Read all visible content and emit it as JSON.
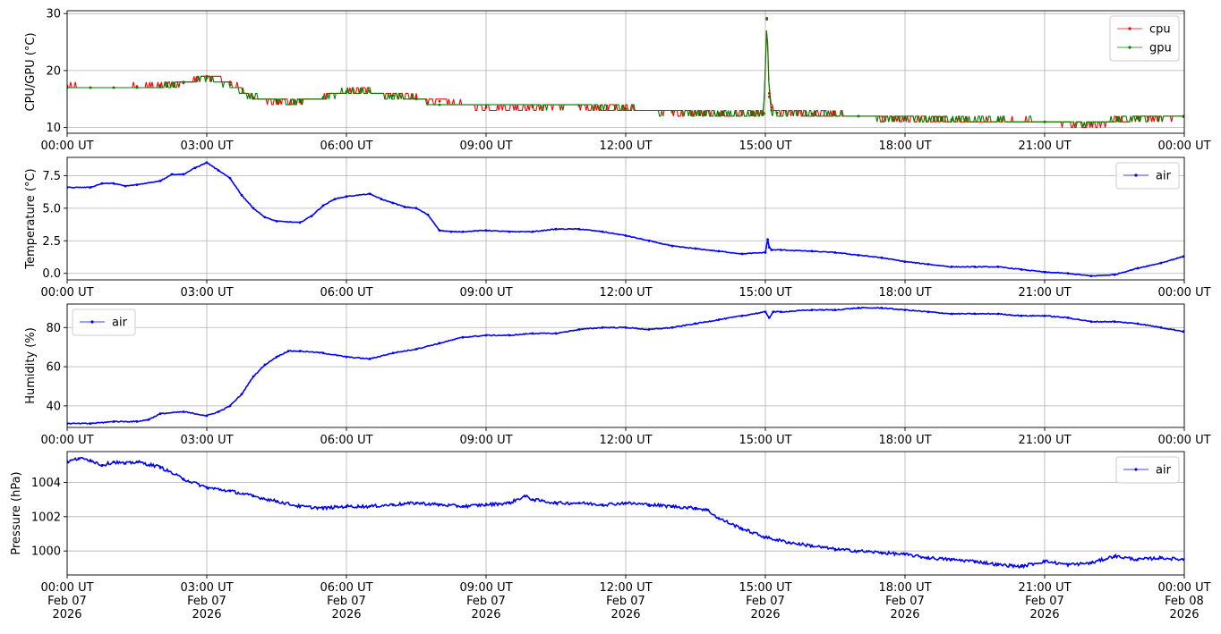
{
  "chart_data": [
    {
      "type": "line",
      "ylabel": "CPU/GPU (°C)",
      "ylim": [
        9.0,
        30.5
      ],
      "yticks": [
        10,
        20,
        30
      ],
      "xlim": [
        "2026-02-07T00:00Z",
        "2026-02-08T00:00Z"
      ],
      "xtick_labels": [
        "00:00 UT",
        "03:00 UT",
        "06:00 UT",
        "09:00 UT",
        "12:00 UT",
        "15:00 UT",
        "18:00 UT",
        "21:00 UT",
        "00:00 UT"
      ],
      "grid": true,
      "legend": "upper-right",
      "series": [
        {
          "name": "cpu",
          "color": "#ff0000",
          "x": [
            "00:00",
            "00:30",
            "01:00",
            "01:30",
            "02:00",
            "02:30",
            "03:00",
            "03:30",
            "04:00",
            "04:30",
            "05:00",
            "05:30",
            "06:00",
            "06:30",
            "07:00",
            "07:30",
            "08:00",
            "09:00",
            "10:00",
            "11:00",
            "12:00",
            "13:00",
            "14:00",
            "14:58",
            "15:02",
            "15:05",
            "15:08",
            "15:15",
            "16:00",
            "17:00",
            "18:00",
            "19:00",
            "20:00",
            "21:00",
            "22:00",
            "23:00",
            "23:59"
          ],
          "values": [
            17.3,
            17.0,
            17.0,
            17.2,
            17.4,
            17.8,
            19.0,
            18.0,
            15.2,
            14.6,
            14.5,
            15.2,
            16.2,
            16.4,
            15.6,
            15.2,
            14.6,
            13.5,
            13.6,
            13.8,
            13.3,
            12.7,
            12.3,
            12.5,
            29.2,
            16.0,
            13.5,
            12.6,
            12.4,
            12.0,
            11.6,
            11.3,
            11.2,
            11.0,
            10.6,
            11.6,
            12.0
          ]
        },
        {
          "name": "gpu",
          "color": "#008000",
          "x": [
            "00:00",
            "00:30",
            "01:00",
            "01:30",
            "02:00",
            "02:30",
            "03:00",
            "03:30",
            "04:00",
            "04:30",
            "05:00",
            "05:30",
            "06:00",
            "06:30",
            "07:00",
            "07:30",
            "08:00",
            "09:00",
            "10:00",
            "11:00",
            "12:00",
            "13:00",
            "14:00",
            "14:58",
            "15:02",
            "15:05",
            "15:08",
            "15:15",
            "16:00",
            "17:00",
            "18:00",
            "19:00",
            "20:00",
            "21:00",
            "22:00",
            "23:00",
            "23:59"
          ],
          "values": [
            17.0,
            17.0,
            17.0,
            17.0,
            17.1,
            18.0,
            18.7,
            17.5,
            15.2,
            14.9,
            14.7,
            15.3,
            16.3,
            16.3,
            15.6,
            15.0,
            14.0,
            13.9,
            13.9,
            13.9,
            13.3,
            12.8,
            12.5,
            12.4,
            29.0,
            15.4,
            13.0,
            12.5,
            12.4,
            12.0,
            11.7,
            11.4,
            11.4,
            11.0,
            10.7,
            11.7,
            11.9
          ]
        }
      ]
    },
    {
      "type": "line",
      "ylabel": "Temperature (°C)",
      "ylim": [
        -0.5,
        8.9
      ],
      "yticks": [
        0.0,
        2.5,
        5.0,
        7.5
      ],
      "ytick_labels": [
        "0.0",
        "2.5",
        "5.0",
        "7.5"
      ],
      "xlim": [
        "2026-02-07T00:00Z",
        "2026-02-08T00:00Z"
      ],
      "xtick_labels": [
        "00:00 UT",
        "03:00 UT",
        "06:00 UT",
        "09:00 UT",
        "12:00 UT",
        "15:00 UT",
        "18:00 UT",
        "21:00 UT",
        "00:00 UT"
      ],
      "grid": true,
      "legend": "upper-right",
      "series": [
        {
          "name": "air",
          "color": "#0000ff",
          "x": [
            "00:00",
            "00:30",
            "00:45",
            "01:00",
            "01:15",
            "01:30",
            "02:00",
            "02:15",
            "02:30",
            "02:45",
            "03:00",
            "03:15",
            "03:30",
            "03:45",
            "04:00",
            "04:15",
            "04:30",
            "05:00",
            "05:15",
            "05:30",
            "05:45",
            "06:00",
            "06:30",
            "06:45",
            "07:00",
            "07:15",
            "07:30",
            "07:45",
            "08:00",
            "08:15",
            "08:30",
            "09:00",
            "09:30",
            "10:00",
            "10:30",
            "11:00",
            "11:30",
            "12:00",
            "12:30",
            "13:00",
            "13:30",
            "14:00",
            "14:30",
            "15:00",
            "15:03",
            "15:05",
            "15:08",
            "15:20",
            "16:00",
            "16:30",
            "17:00",
            "17:30",
            "18:00",
            "18:30",
            "19:00",
            "19:30",
            "20:00",
            "20:30",
            "21:00",
            "21:30",
            "22:00",
            "22:30",
            "23:00",
            "23:30",
            "23:59"
          ],
          "values": [
            6.6,
            6.6,
            6.9,
            6.9,
            6.7,
            6.8,
            7.1,
            7.6,
            7.6,
            8.1,
            8.5,
            7.9,
            7.3,
            6.0,
            5.0,
            4.3,
            4.0,
            3.9,
            4.4,
            5.2,
            5.7,
            5.9,
            6.1,
            5.7,
            5.4,
            5.1,
            5.0,
            4.5,
            3.3,
            3.2,
            3.2,
            3.3,
            3.2,
            3.2,
            3.4,
            3.4,
            3.2,
            2.9,
            2.5,
            2.1,
            1.9,
            1.7,
            1.5,
            1.6,
            2.6,
            2.0,
            1.8,
            1.8,
            1.7,
            1.6,
            1.4,
            1.2,
            0.9,
            0.7,
            0.5,
            0.5,
            0.5,
            0.3,
            0.1,
            0.0,
            -0.2,
            -0.1,
            0.4,
            0.8,
            1.3
          ]
        }
      ]
    },
    {
      "type": "line",
      "ylabel": "Humidity (%)",
      "ylim": [
        29,
        92
      ],
      "yticks": [
        40,
        60,
        80
      ],
      "xlim": [
        "2026-02-07T00:00Z",
        "2026-02-08T00:00Z"
      ],
      "xtick_labels": [
        "00:00 UT",
        "03:00 UT",
        "06:00 UT",
        "09:00 UT",
        "12:00 UT",
        "15:00 UT",
        "18:00 UT",
        "21:00 UT",
        "00:00 UT"
      ],
      "grid": true,
      "legend": "upper-left",
      "series": [
        {
          "name": "air",
          "color": "#0000ff",
          "x": [
            "00:00",
            "00:30",
            "01:00",
            "01:30",
            "01:45",
            "02:00",
            "02:30",
            "03:00",
            "03:15",
            "03:30",
            "03:45",
            "04:00",
            "04:15",
            "04:30",
            "04:45",
            "05:00",
            "05:30",
            "06:00",
            "06:30",
            "07:00",
            "07:30",
            "08:00",
            "08:30",
            "09:00",
            "09:30",
            "10:00",
            "10:30",
            "11:00",
            "11:30",
            "12:00",
            "12:30",
            "13:00",
            "13:30",
            "14:00",
            "14:30",
            "15:00",
            "15:05",
            "15:10",
            "15:20",
            "16:00",
            "16:30",
            "17:00",
            "17:30",
            "18:00",
            "18:30",
            "19:00",
            "19:30",
            "20:00",
            "20:30",
            "21:00",
            "21:30",
            "22:00",
            "22:30",
            "23:00",
            "23:30",
            "23:59"
          ],
          "values": [
            31,
            31,
            32,
            32,
            33,
            36,
            37,
            35,
            37,
            40,
            46,
            55,
            61,
            65,
            68,
            68,
            67,
            65,
            64,
            67,
            69,
            72,
            75,
            76,
            76,
            77,
            77,
            79,
            80,
            80,
            79,
            80,
            82,
            84,
            86,
            88,
            85,
            88,
            88,
            89,
            89,
            90,
            90,
            89,
            88,
            87,
            87,
            87,
            86,
            86,
            85,
            83,
            83,
            82,
            80,
            78
          ]
        }
      ]
    },
    {
      "type": "line",
      "ylabel": "Pressure (hPa)",
      "ylim": [
        998.6,
        1005.8
      ],
      "yticks": [
        1000,
        1002,
        1004
      ],
      "xlim": [
        "2026-02-07T00:00Z",
        "2026-02-08T00:00Z"
      ],
      "xtick_labels": [
        "00:00 UT\nFeb 07\n2026",
        "03:00 UT\nFeb 07\n2026",
        "06:00 UT\nFeb 07\n2026",
        "09:00 UT\nFeb 07\n2026",
        "12:00 UT\nFeb 07\n2026",
        "15:00 UT\nFeb 07\n2026",
        "18:00 UT\nFeb 07\n2026",
        "21:00 UT\nFeb 07\n2026",
        "00:00 UT\nFeb 08\n2026"
      ],
      "grid": true,
      "legend": "upper-right",
      "series": [
        {
          "name": "air",
          "color": "#0000ff",
          "x": [
            "00:00",
            "00:15",
            "00:30",
            "00:45",
            "01:00",
            "01:15",
            "01:30",
            "02:00",
            "02:30",
            "03:00",
            "03:30",
            "04:00",
            "04:30",
            "05:00",
            "05:30",
            "06:00",
            "06:30",
            "07:00",
            "07:30",
            "08:00",
            "08:30",
            "09:00",
            "09:30",
            "09:50",
            "10:00",
            "10:30",
            "11:00",
            "11:30",
            "12:00",
            "12:30",
            "13:00",
            "13:30",
            "13:45",
            "14:00",
            "14:30",
            "15:00",
            "15:30",
            "16:00",
            "16:30",
            "17:00",
            "17:30",
            "18:00",
            "18:30",
            "19:00",
            "19:30",
            "20:00",
            "20:30",
            "21:00",
            "21:30",
            "22:00",
            "22:30",
            "23:00",
            "23:30",
            "23:59"
          ],
          "values": [
            1005.2,
            1005.4,
            1005.3,
            1005.0,
            1005.2,
            1005.1,
            1005.2,
            1004.9,
            1004.2,
            1003.7,
            1003.5,
            1003.2,
            1002.9,
            1002.6,
            1002.5,
            1002.6,
            1002.6,
            1002.7,
            1002.8,
            1002.7,
            1002.6,
            1002.7,
            1002.8,
            1003.2,
            1003.0,
            1002.8,
            1002.8,
            1002.7,
            1002.8,
            1002.7,
            1002.6,
            1002.5,
            1002.4,
            1001.9,
            1001.3,
            1000.8,
            1000.5,
            1000.3,
            1000.1,
            1000.0,
            999.9,
            999.8,
            999.6,
            999.5,
            999.4,
            999.2,
            999.1,
            999.4,
            999.2,
            999.3,
            999.7,
            999.5,
            999.6,
            999.5
          ]
        }
      ]
    }
  ]
}
